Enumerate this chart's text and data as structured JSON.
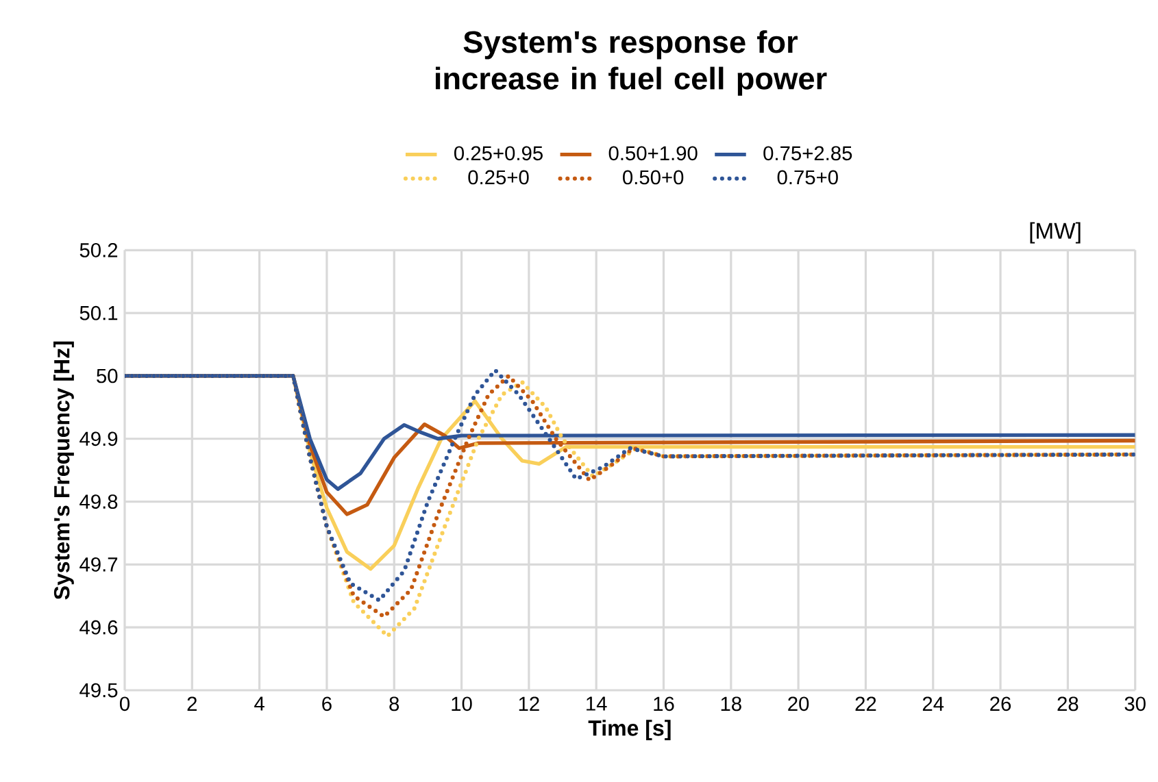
{
  "chart_data": {
    "type": "line",
    "title": "System's response for increase in fuel cell power",
    "xlabel": "Time [s]",
    "ylabel": "System's Frequency [Hz]",
    "annotations": [
      "[MW]"
    ],
    "xlim": [
      0,
      30
    ],
    "ylim": [
      49.5,
      50.2
    ],
    "xticks": [
      0,
      2,
      4,
      6,
      8,
      10,
      12,
      14,
      16,
      18,
      20,
      22,
      24,
      26,
      28,
      30
    ],
    "yticks": [
      49.5,
      49.6,
      49.7,
      49.8,
      49.9,
      50,
      50.1,
      50.2
    ],
    "grid": true,
    "legend": "top",
    "marker": "none",
    "series": [
      {
        "name": "0.25+0.95",
        "color": "#f9cf5a",
        "line_style": "solid",
        "x": [
          0,
          5,
          5.5,
          6,
          6.6,
          7.3,
          8,
          8.7,
          9.4,
          10.4,
          11.2,
          11.8,
          12.3,
          13.1,
          30
        ],
        "values": [
          50,
          50,
          49.88,
          49.79,
          49.72,
          49.693,
          49.73,
          49.82,
          49.9,
          49.96,
          49.9,
          49.865,
          49.86,
          49.887,
          49.887
        ]
      },
      {
        "name": "0.50+1.90",
        "color": "#c55a11",
        "line_style": "solid",
        "x": [
          0,
          5,
          5.5,
          6,
          6.6,
          7.2,
          8,
          8.9,
          9.5,
          9.93,
          10.5,
          30
        ],
        "values": [
          50,
          50,
          49.89,
          49.815,
          49.78,
          49.795,
          49.87,
          49.923,
          49.905,
          49.885,
          49.893,
          49.897
        ]
      },
      {
        "name": "0.75+2.85",
        "color": "#2f5597",
        "line_style": "solid",
        "x": [
          0,
          5,
          5.5,
          6,
          6.33,
          7,
          7.7,
          8.3,
          8.8,
          9.3,
          10,
          30
        ],
        "values": [
          50,
          50,
          49.9,
          49.835,
          49.82,
          49.845,
          49.9,
          49.922,
          49.91,
          49.9,
          49.905,
          49.906
        ]
      },
      {
        "name": "0.25+0",
        "color": "#f9cf5a",
        "line_style": "dotted",
        "x": [
          0,
          5,
          5.5,
          6,
          6.8,
          7.8,
          8.6,
          9.5,
          10.5,
          11.2,
          11.8,
          12.5,
          13,
          13.9,
          14.5,
          15.2,
          16,
          30
        ],
        "values": [
          50,
          50,
          49.87,
          49.76,
          49.64,
          49.586,
          49.63,
          49.76,
          49.9,
          49.97,
          49.99,
          49.95,
          49.9,
          49.84,
          49.86,
          49.885,
          49.872,
          49.875
        ]
      },
      {
        "name": "0.50+0",
        "color": "#c55a11",
        "line_style": "dotted",
        "x": [
          0,
          5,
          5.5,
          6,
          6.8,
          7.7,
          8.5,
          9.3,
          10.2,
          10.8,
          11.4,
          12.1,
          12.8,
          13.8,
          14.5,
          15.1,
          16,
          30
        ],
        "values": [
          50,
          50,
          49.87,
          49.76,
          49.65,
          49.617,
          49.66,
          49.78,
          49.9,
          49.97,
          50,
          49.96,
          49.9,
          49.834,
          49.86,
          49.885,
          49.872,
          49.875
        ]
      },
      {
        "name": "0.75+0",
        "color": "#2f5597",
        "line_style": "dotted",
        "x": [
          0,
          5,
          5.5,
          6,
          6.7,
          7.56,
          8.3,
          9,
          9.8,
          10.4,
          11,
          11.7,
          12.6,
          13.4,
          14.2,
          15,
          16,
          30
        ],
        "values": [
          50,
          50,
          49.87,
          49.76,
          49.67,
          49.643,
          49.69,
          49.8,
          49.9,
          49.97,
          50.009,
          49.97,
          49.9,
          49.836,
          49.855,
          49.885,
          49.872,
          49.875
        ]
      }
    ]
  }
}
